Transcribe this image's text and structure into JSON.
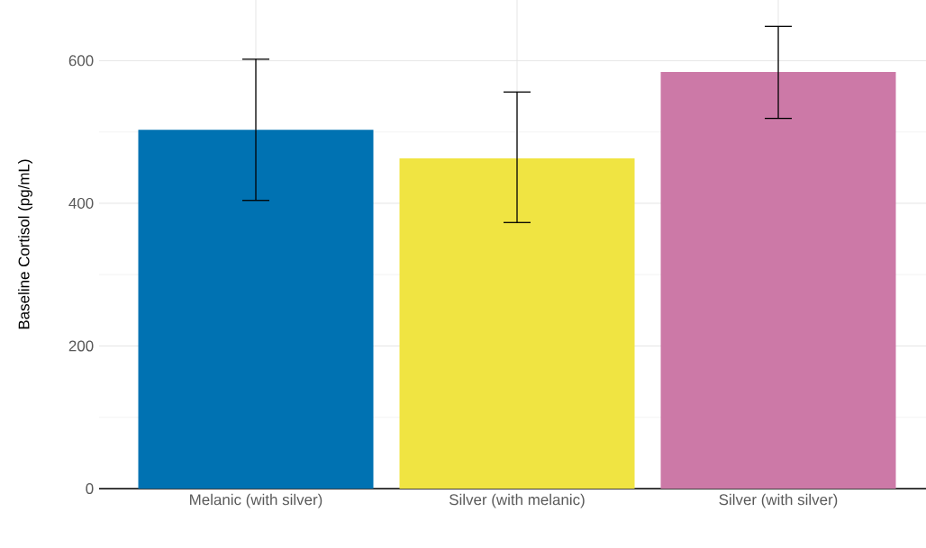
{
  "chart_data": {
    "type": "bar",
    "ylabel": "Baseline Cortisol (pg/mL)",
    "categories": [
      "Melanic (with silver)",
      "Silver (with melanic)",
      "Silver (with silver)"
    ],
    "values": [
      503,
      463,
      584
    ],
    "colors": [
      "#0072b2",
      "#f0e442",
      "#cc79a7"
    ],
    "errors": [
      [
        404,
        602
      ],
      [
        373,
        556
      ],
      [
        519,
        648
      ]
    ],
    "ylim": [
      0,
      685
    ],
    "yticks": [
      0,
      200,
      400,
      600
    ],
    "grid": true
  }
}
